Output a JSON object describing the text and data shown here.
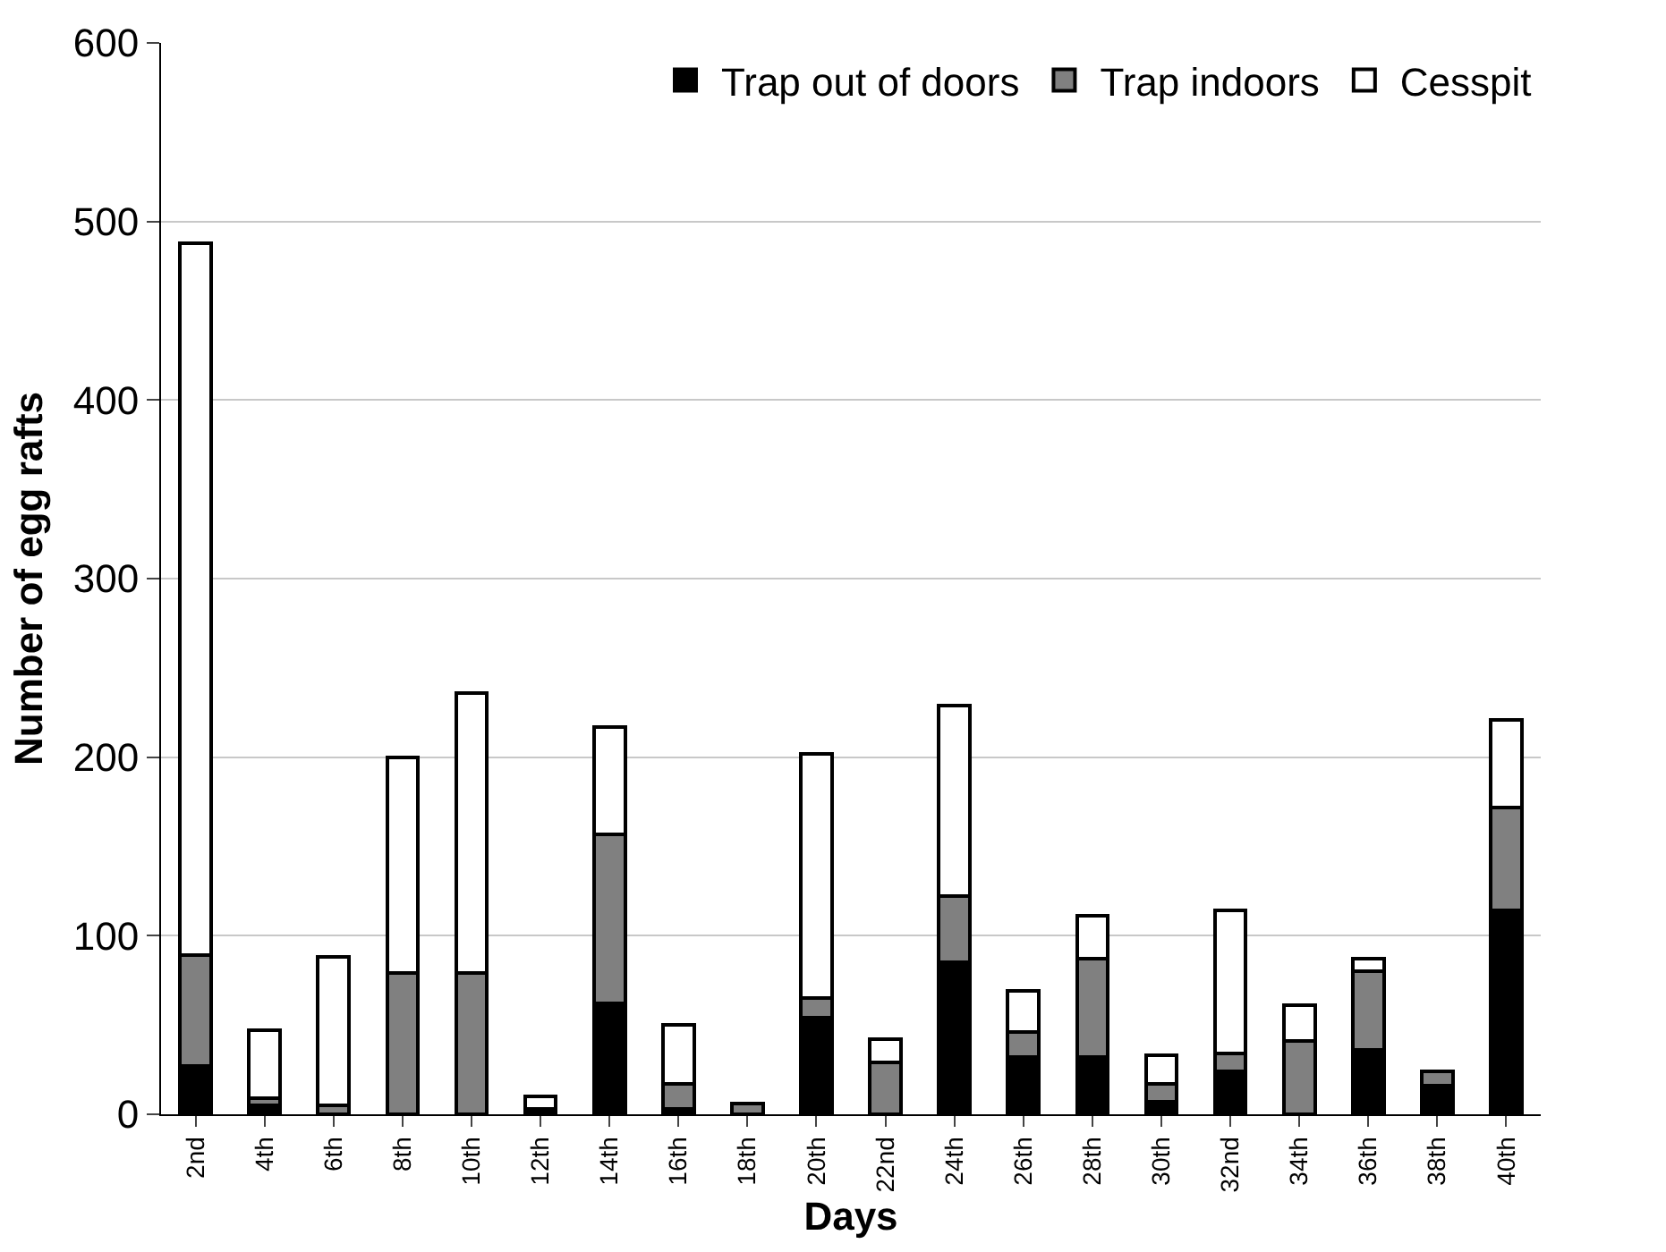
{
  "chart_data": {
    "type": "bar",
    "stacked": true,
    "xlabel": "Days",
    "ylabel": "Number of egg rafts",
    "categories": [
      "2nd",
      "4th",
      "6th",
      "8th",
      "10th",
      "12th",
      "14th",
      "16th",
      "18th",
      "20th",
      "22nd",
      "24th",
      "26th",
      "28th",
      "30th",
      "32nd",
      "34th",
      "36th",
      "38th",
      "40th"
    ],
    "series": [
      {
        "name": "Trap out of doors",
        "color": "#000000",
        "values": [
          27,
          5,
          0,
          0,
          0,
          3,
          62,
          3,
          0,
          54,
          0,
          85,
          32,
          32,
          7,
          24,
          0,
          36,
          16,
          114
        ]
      },
      {
        "name": "Trap indoors",
        "color": "#808080",
        "values": [
          62,
          4,
          5,
          79,
          79,
          0,
          95,
          14,
          6,
          11,
          29,
          37,
          14,
          55,
          10,
          10,
          41,
          44,
          8,
          58
        ]
      },
      {
        "name": "Cesspit",
        "color": "#ffffff",
        "values": [
          399,
          38,
          83,
          121,
          157,
          7,
          60,
          33,
          0,
          137,
          13,
          107,
          23,
          24,
          16,
          80,
          20,
          7,
          0,
          49
        ]
      }
    ],
    "ylim": [
      0,
      600
    ],
    "yticks": [
      0,
      100,
      200,
      300,
      400,
      500,
      600
    ],
    "grid": "y",
    "legend": "top right"
  }
}
